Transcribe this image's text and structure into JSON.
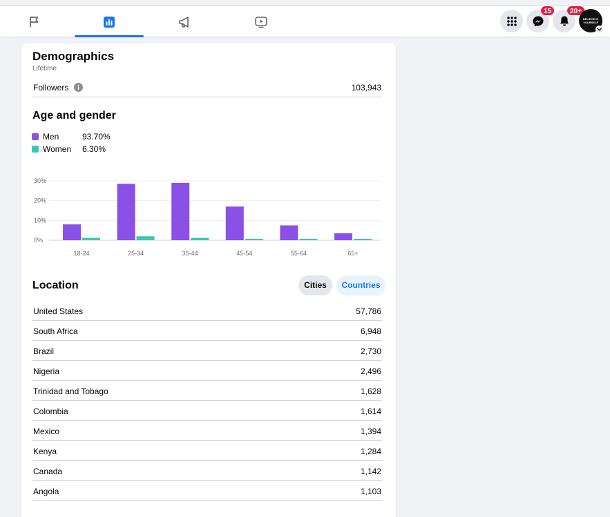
{
  "colors": {
    "accent": "#1877f2",
    "men": "#8b50e6",
    "women": "#3cc7b4",
    "badge": "#e41e3f"
  },
  "nav": {
    "tabs": [
      {
        "icon": "flag-icon"
      },
      {
        "icon": "insights-chart-icon",
        "active": true
      },
      {
        "icon": "megaphone-icon"
      },
      {
        "icon": "video-play-icon"
      }
    ],
    "right": {
      "menu_icon": "grid-menu-icon",
      "messenger_icon": "messenger-icon",
      "messenger_badge": "15",
      "notifications_icon": "bell-icon",
      "notifications_badge": "20+",
      "avatar_text": "BELIEVE IN YOURSELF"
    }
  },
  "demographics": {
    "title": "Demographics",
    "subtitle": "Lifetime",
    "followers_label": "Followers",
    "followers_value": "103,943"
  },
  "age_gender": {
    "title": "Age and gender",
    "legend": [
      {
        "name": "Men",
        "value": "93.70%"
      },
      {
        "name": "Women",
        "value": "6.30%"
      }
    ]
  },
  "chart_data": {
    "type": "bar",
    "categories": [
      "18-24",
      "25-34",
      "35-44",
      "45-54",
      "55-64",
      "65+"
    ],
    "series": [
      {
        "name": "Men",
        "values": [
          8,
          28.5,
          29,
          17,
          7.5,
          3.5
        ]
      },
      {
        "name": "Women",
        "values": [
          1.2,
          2,
          1.2,
          0.6,
          0.3,
          0.2
        ]
      }
    ],
    "yticks": [
      "0%",
      "10%",
      "20%",
      "30%"
    ],
    "ylim": [
      0,
      30
    ],
    "grid": true
  },
  "location": {
    "title": "Location",
    "cities_label": "Cities",
    "countries_label": "Countries",
    "rows": [
      {
        "name": "United States",
        "value": "57,786"
      },
      {
        "name": "South Africa",
        "value": "6,948"
      },
      {
        "name": "Brazil",
        "value": "2,730"
      },
      {
        "name": "Nigeria",
        "value": "2,496"
      },
      {
        "name": "Trinidad and Tobago",
        "value": "1,628"
      },
      {
        "name": "Colombia",
        "value": "1,614"
      },
      {
        "name": "Mexico",
        "value": "1,394"
      },
      {
        "name": "Kenya",
        "value": "1,284"
      },
      {
        "name": "Canada",
        "value": "1,142"
      },
      {
        "name": "Angola",
        "value": "1,103"
      }
    ]
  }
}
